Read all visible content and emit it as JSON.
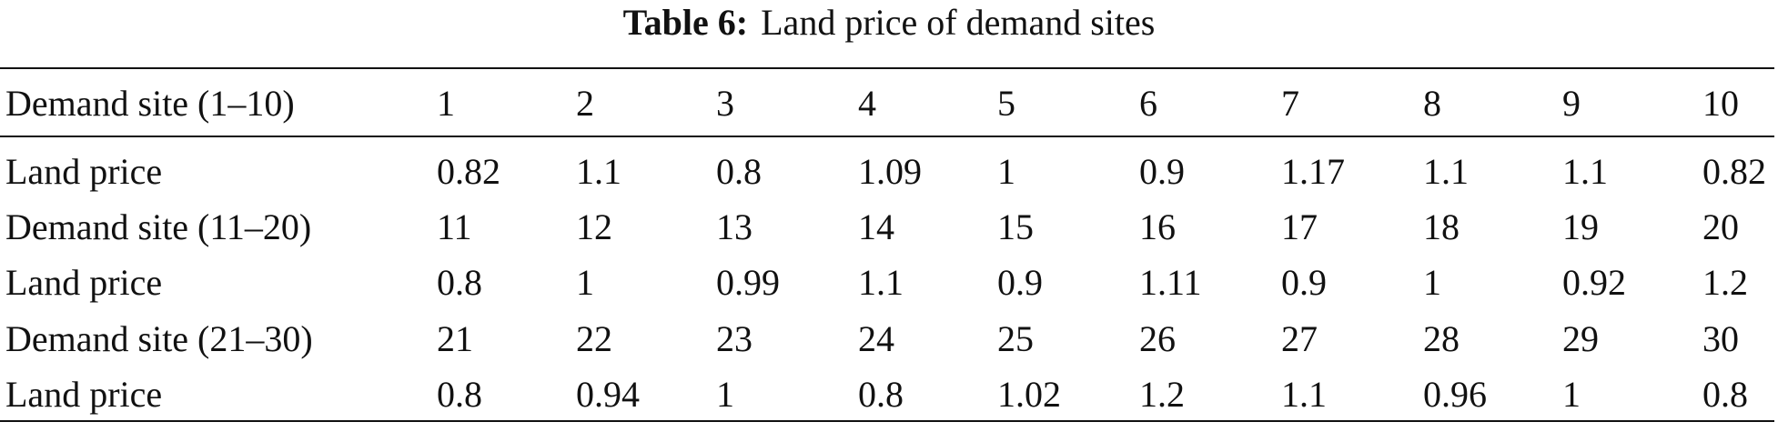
{
  "table": {
    "caption_label": "Table 6:",
    "caption": "Land price of demand sites",
    "header": [
      "Demand site (1–10)",
      "1",
      "2",
      "3",
      "4",
      "5",
      "6",
      "7",
      "8",
      "9",
      "10"
    ],
    "rows": [
      [
        "Land price",
        "0.82",
        "1.1",
        "0.8",
        "1.09",
        "1",
        "0.9",
        "1.17",
        "1.1",
        "1.1",
        "0.82"
      ],
      [
        "Demand site (11–20)",
        "11",
        "12",
        "13",
        "14",
        "15",
        "16",
        "17",
        "18",
        "19",
        "20"
      ],
      [
        "Land price",
        "0.8",
        "1",
        "0.99",
        "1.1",
        "0.9",
        "1.11",
        "0.9",
        "1",
        "0.92",
        "1.2"
      ],
      [
        "Demand site (21–30)",
        "21",
        "22",
        "23",
        "24",
        "25",
        "26",
        "27",
        "28",
        "29",
        "30"
      ],
      [
        "Land price",
        "0.8",
        "0.94",
        "1",
        "0.8",
        "1.02",
        "1.2",
        "1.1",
        "0.96",
        "1",
        "0.8"
      ]
    ]
  }
}
